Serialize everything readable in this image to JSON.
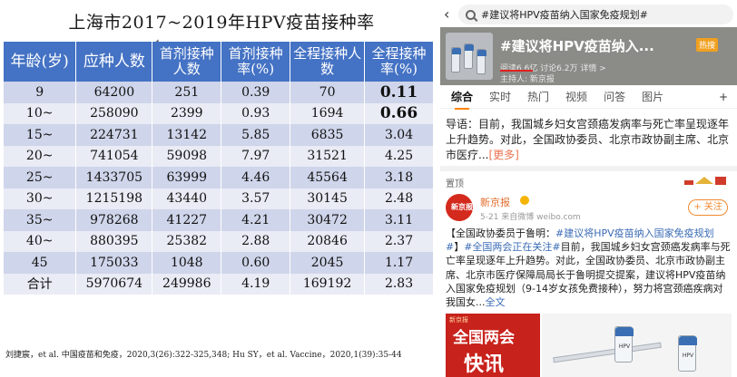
{
  "slide": {
    "title": "上海市2017~2019年HPV疫苗接种率",
    "headers": [
      "年龄(岁)",
      "应种人数",
      "首剂接种人数",
      "首剂接种率(%)",
      "全程接种人数",
      "全程接种率(%)"
    ],
    "rows": [
      [
        "9",
        "64200",
        "251",
        "0.39",
        "70",
        "0.11"
      ],
      [
        "10~",
        "258090",
        "2399",
        "0.93",
        "1694",
        "0.66"
      ],
      [
        "15~",
        "224731",
        "13142",
        "5.85",
        "6835",
        "3.04"
      ],
      [
        "20~",
        "741054",
        "59098",
        "7.97",
        "31521",
        "4.25"
      ],
      [
        "25~",
        "1433705",
        "63999",
        "4.46",
        "45564",
        "3.18"
      ],
      [
        "30~",
        "1215198",
        "43440",
        "3.57",
        "30145",
        "2.48"
      ],
      [
        "35~",
        "978268",
        "41227",
        "4.21",
        "30472",
        "3.11"
      ],
      [
        "40~",
        "880395",
        "25382",
        "2.88",
        "20846",
        "2.37"
      ],
      [
        "45",
        "175033",
        "1048",
        "0.60",
        "2045",
        "1.17"
      ],
      [
        "合计",
        "5970674",
        "249986",
        "4.19",
        "169192",
        "2.83"
      ]
    ],
    "citation": "刘捷宸，et al. 中国疫苗和免疫，2020,3(26):322-325,348; Hu SY，et al. Vaccine，2020,1(39):35-44"
  },
  "phone": {
    "search_text": "#建议将HPV疫苗纳入国家免疫规划#",
    "banner": {
      "title": "#建议将HPV疫苗纳入...",
      "badge": "热搜",
      "stats": "阅读6.6亿  讨论6.2万  详情 >",
      "host": "主持人: 新京报"
    },
    "tabs": [
      "综合",
      "实时",
      "热门",
      "视频",
      "问答",
      "图片"
    ],
    "tab_more": "+",
    "guide_text": "导语：目前，我国城乡妇女宫颈癌发病率与死亡率呈现逐年上升趋势。对此，全国政协委员、北京市政协副主席、北京市医疗...",
    "guide_more": "[更多]",
    "pin_label": "置顶",
    "author": {
      "avatar_text": "新京报",
      "name": "新京报",
      "meta": "5-21  来自微博  weibo.com",
      "follow": "+ 关注"
    },
    "post": {
      "prefix": "【全国政协委员于鲁明：",
      "topic1": "#建议将HPV疫苗纳入国家免疫规划#",
      "mid": "】",
      "topic2": "#全国两会正在关注#",
      "body": "目前，我国城乡妇女宫颈癌发病率与死亡率呈现逐年上升趋势。对此，全国政协委员、北京市政协副主席、北京市医疗保障局局长于鲁明提交提案，建议将HPV疫苗纳入国家免疫规划（9-14岁女孩免费接种），努力将宫颈癌疾病对我国女...",
      "full_text": "全文"
    },
    "media": {
      "top": "新京报",
      "title": "全国两会",
      "sub": "快讯",
      "vial_labels": [
        "HPV",
        "HPV"
      ]
    }
  }
}
